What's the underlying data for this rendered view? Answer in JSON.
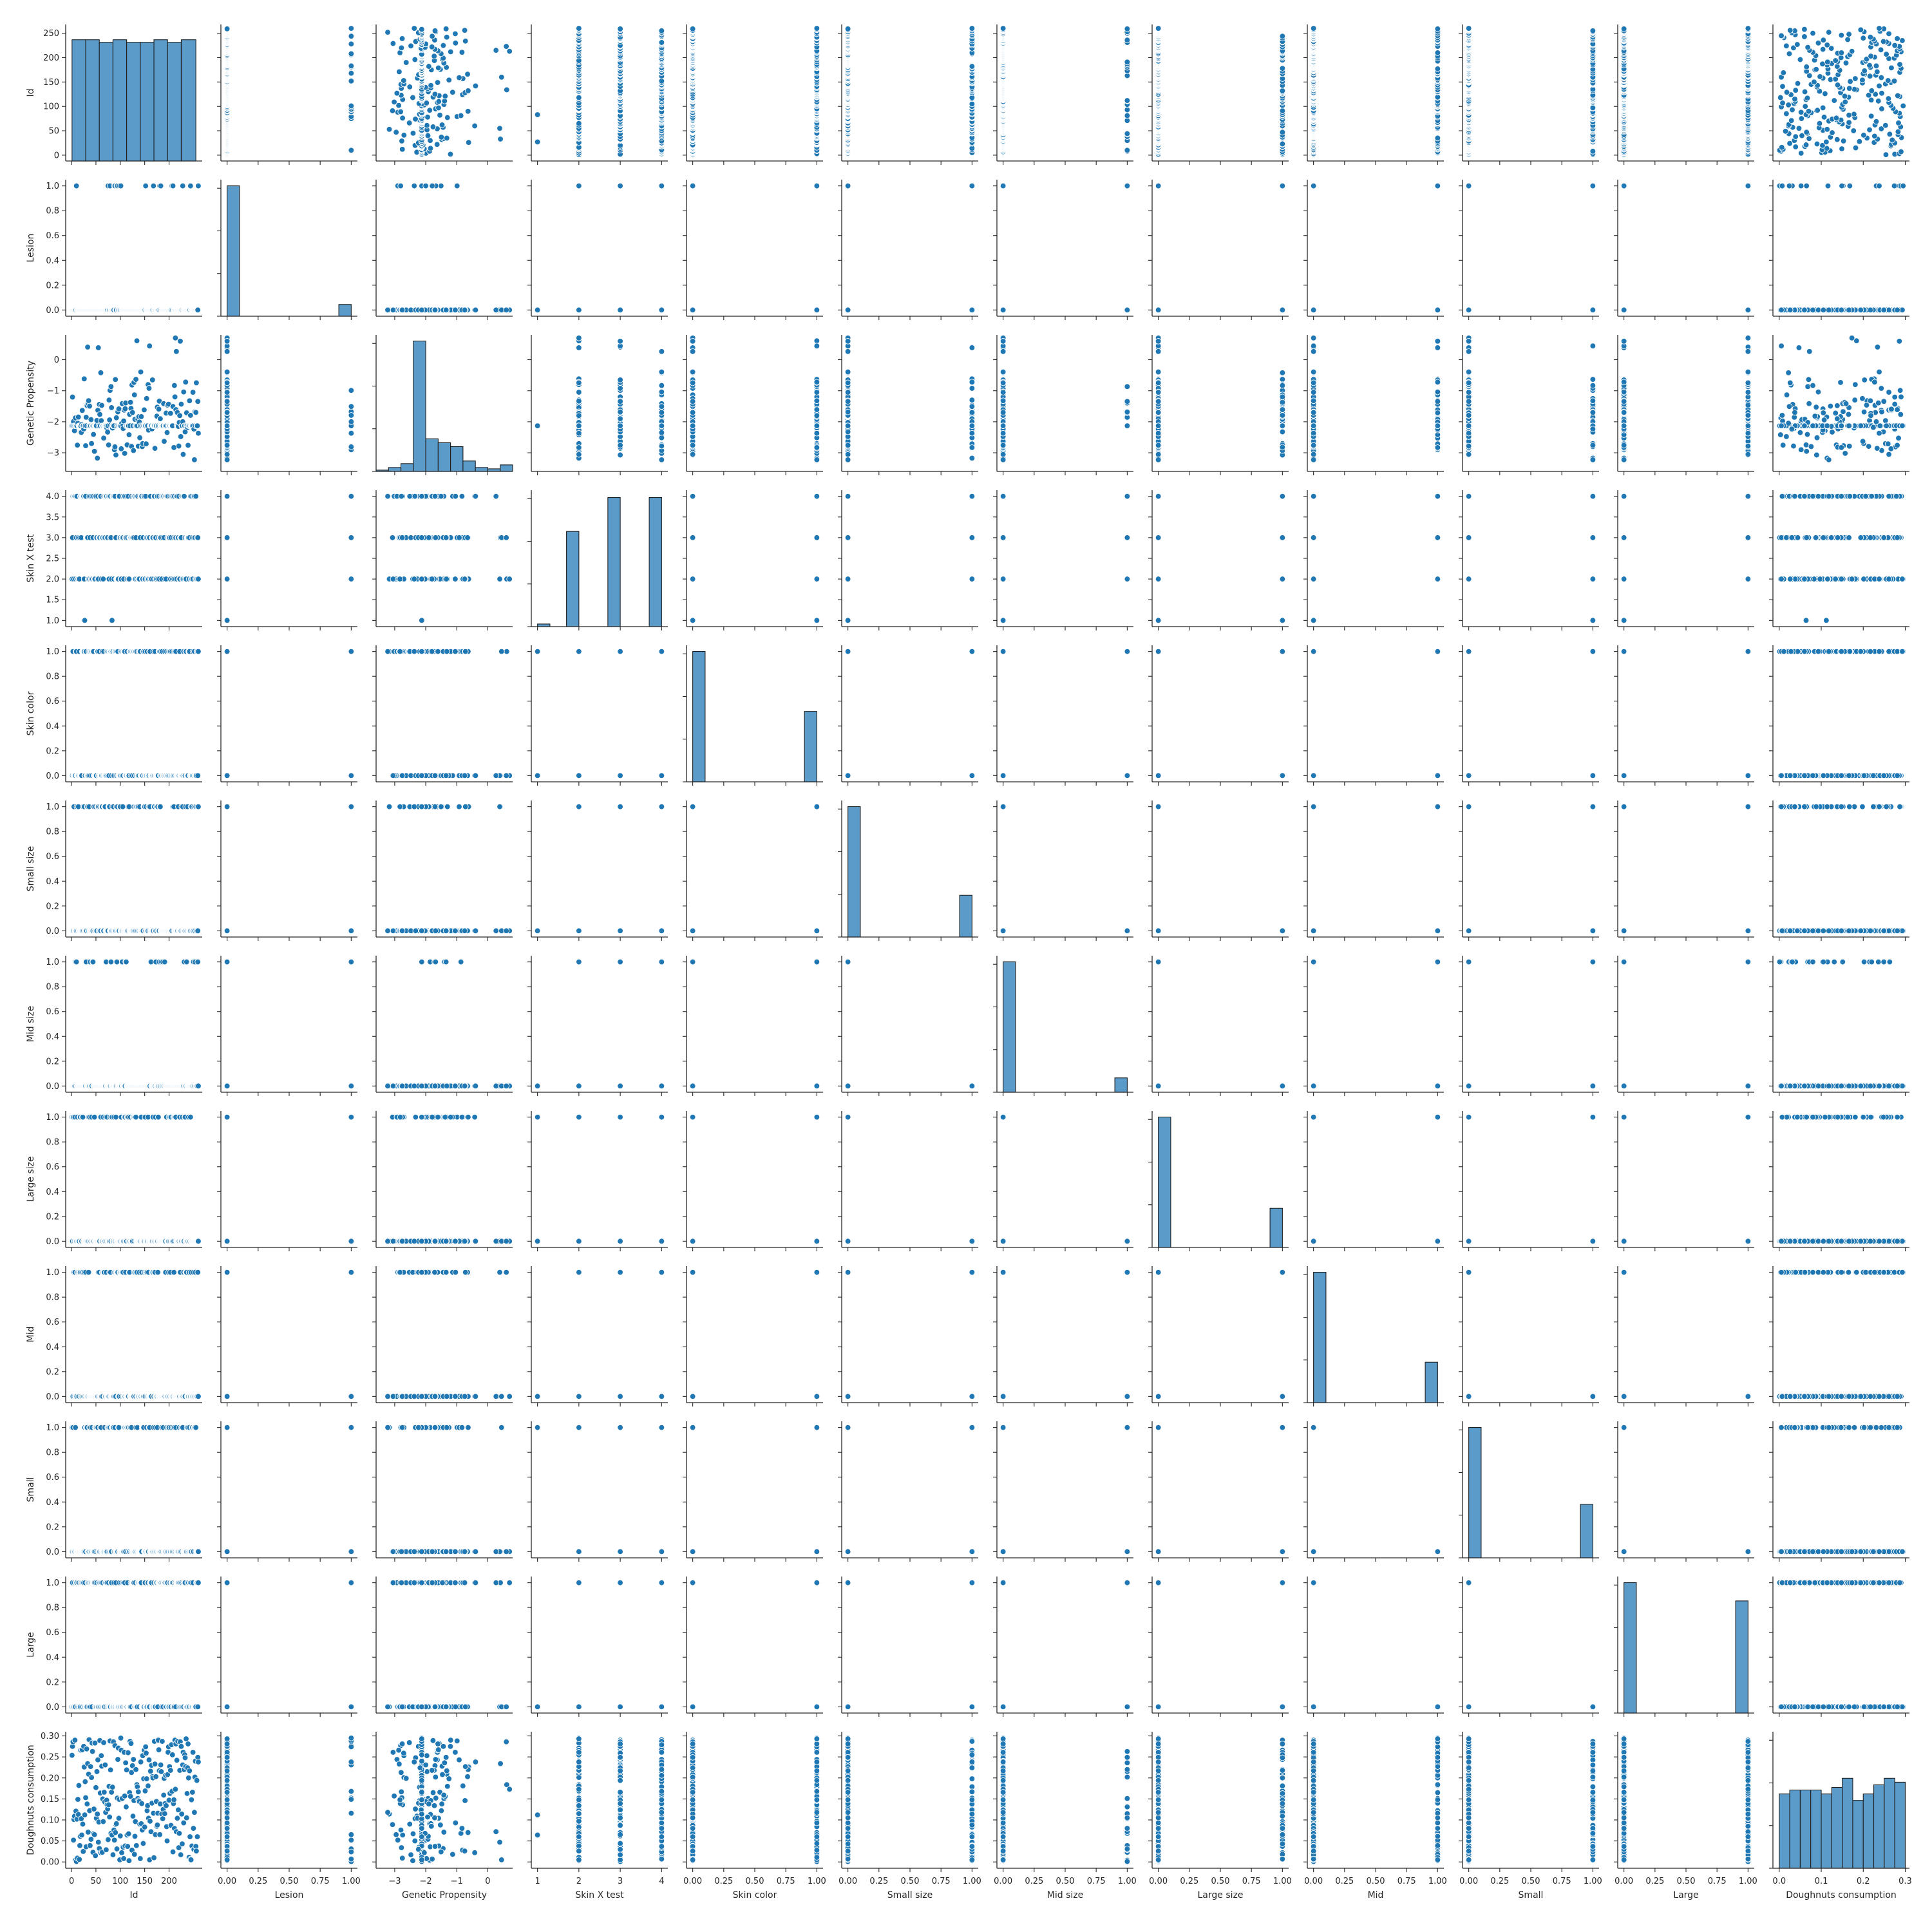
{
  "chart_data": {
    "type": "scatter",
    "subtype": "pairplot-matrix",
    "diagonal": "histogram",
    "variables": [
      "Id",
      "Lesion",
      "Genetic Propensity",
      "Skin X test",
      "Skin color",
      "Small size",
      "Mid size",
      "Large size",
      "Mid",
      "Small",
      "Large",
      "Doughnuts consumption"
    ],
    "x_ticks": [
      [
        "0",
        "50",
        "100",
        "150",
        "200"
      ],
      [
        "0.00",
        "0.25",
        "0.50",
        "0.75",
        "1.00"
      ],
      [
        "−3",
        "−2",
        "−1",
        "0"
      ],
      [
        "1",
        "2",
        "3",
        "4"
      ],
      [
        "0.00",
        "0.25",
        "0.50",
        "0.75",
        "1.00"
      ],
      [
        "0.00",
        "0.25",
        "0.50",
        "0.75",
        "1.00"
      ],
      [
        "0.00",
        "0.25",
        "0.50",
        "0.75",
        "1.00"
      ],
      [
        "0.00",
        "0.25",
        "0.50",
        "0.75",
        "1.00"
      ],
      [
        "0.00",
        "0.25",
        "0.50",
        "0.75",
        "1.00"
      ],
      [
        "0.00",
        "0.25",
        "0.50",
        "0.75",
        "1.00"
      ],
      [
        "0.00",
        "0.25",
        "0.50",
        "0.75",
        "1.00"
      ],
      [
        "0.0",
        "0.1",
        "0.2",
        "0.3"
      ]
    ],
    "y_ticks": [
      [
        "0",
        "50",
        "100",
        "150",
        "200",
        "250"
      ],
      [
        "0.0",
        "0.2",
        "0.4",
        "0.6",
        "0.8",
        "1.0"
      ],
      [
        "−3",
        "−2",
        "−1",
        "0"
      ],
      [
        "1.0",
        "1.5",
        "2.0",
        "2.5",
        "3.0",
        "3.5",
        "4.0"
      ],
      [
        "0.0",
        "0.2",
        "0.4",
        "0.6",
        "0.8",
        "1.0"
      ],
      [
        "0.0",
        "0.2",
        "0.4",
        "0.6",
        "0.8",
        "1.0"
      ],
      [
        "0.0",
        "0.2",
        "0.4",
        "0.6",
        "0.8",
        "1.0"
      ],
      [
        "0.0",
        "0.2",
        "0.4",
        "0.6",
        "0.8",
        "1.0"
      ],
      [
        "0.0",
        "0.2",
        "0.4",
        "0.6",
        "0.8",
        "1.0"
      ],
      [
        "0.0",
        "0.2",
        "0.4",
        "0.6",
        "0.8",
        "1.0"
      ],
      [
        "0.0",
        "0.2",
        "0.4",
        "0.6",
        "0.8",
        "1.0"
      ],
      [
        "0.00",
        "0.05",
        "0.10",
        "0.15",
        "0.20",
        "0.25",
        "0.30"
      ]
    ],
    "ranges": [
      [
        -12,
        268
      ],
      [
        -0.05,
        1.05
      ],
      [
        -3.6,
        0.8
      ],
      [
        0.85,
        4.15
      ],
      [
        -0.05,
        1.05
      ],
      [
        -0.05,
        1.05
      ],
      [
        -0.05,
        1.05
      ],
      [
        -0.05,
        1.05
      ],
      [
        -0.05,
        1.05
      ],
      [
        -0.05,
        1.05
      ],
      [
        -0.05,
        1.05
      ],
      [
        -0.015,
        0.31
      ]
    ],
    "tick_values": [
      [
        0,
        50,
        100,
        150,
        200,
        250
      ],
      [
        0,
        0.2,
        0.4,
        0.6,
        0.8,
        1.0
      ],
      [
        -3,
        -2,
        -1,
        0
      ],
      [
        1,
        1.5,
        2,
        2.5,
        3,
        3.5,
        4
      ],
      [
        0,
        0.2,
        0.4,
        0.6,
        0.8,
        1.0
      ],
      [
        0,
        0.2,
        0.4,
        0.6,
        0.8,
        1.0
      ],
      [
        0,
        0.2,
        0.4,
        0.6,
        0.8,
        1.0
      ],
      [
        0,
        0.2,
        0.4,
        0.6,
        0.8,
        1.0
      ],
      [
        0,
        0.2,
        0.4,
        0.6,
        0.8,
        1.0
      ],
      [
        0,
        0.2,
        0.4,
        0.6,
        0.8,
        1.0
      ],
      [
        0,
        0.2,
        0.4,
        0.6,
        0.8,
        1.0
      ],
      [
        0,
        0.05,
        0.1,
        0.15,
        0.2,
        0.25,
        0.3
      ]
    ],
    "x_tick_values": [
      [
        0,
        50,
        100,
        150,
        200
      ],
      [
        0,
        0.25,
        0.5,
        0.75,
        1.0
      ],
      [
        -3,
        -2,
        -1,
        0
      ],
      [
        1,
        2,
        3,
        4
      ],
      [
        0,
        0.25,
        0.5,
        0.75,
        1.0
      ],
      [
        0,
        0.25,
        0.5,
        0.75,
        1.0
      ],
      [
        0,
        0.25,
        0.5,
        0.75,
        1.0
      ],
      [
        0,
        0.25,
        0.5,
        0.75,
        1.0
      ],
      [
        0,
        0.25,
        0.5,
        0.75,
        1.0
      ],
      [
        0,
        0.25,
        0.5,
        0.75,
        1.0
      ],
      [
        0,
        0.25,
        0.5,
        0.75,
        1.0
      ],
      [
        0,
        0.1,
        0.2,
        0.3
      ]
    ],
    "histograms": [
      {
        "variable": "Id",
        "bins": [
          [
            1,
            29,
            0.93
          ],
          [
            29,
            57,
            0.93
          ],
          [
            57,
            85,
            0.91
          ],
          [
            85,
            113,
            0.93
          ],
          [
            113,
            141,
            0.91
          ],
          [
            141,
            169,
            0.91
          ],
          [
            169,
            197,
            0.93
          ],
          [
            197,
            225,
            0.91
          ],
          [
            225,
            255,
            0.93
          ]
        ]
      },
      {
        "variable": "Lesion",
        "bins": [
          [
            0,
            0.1,
            1.0
          ],
          [
            0.9,
            1.0,
            0.09
          ]
        ]
      },
      {
        "variable": "Genetic Propensity",
        "bins": [
          [
            -3.6,
            -3.2,
            0.01
          ],
          [
            -3.2,
            -2.8,
            0.03
          ],
          [
            -2.8,
            -2.4,
            0.06
          ],
          [
            -2.4,
            -2.0,
            1.0
          ],
          [
            -2.0,
            -1.6,
            0.25
          ],
          [
            -1.6,
            -1.2,
            0.22
          ],
          [
            -1.2,
            -0.8,
            0.19
          ],
          [
            -0.8,
            -0.4,
            0.08
          ],
          [
            -0.4,
            0.0,
            0.03
          ],
          [
            0.0,
            0.4,
            0.02
          ],
          [
            0.4,
            0.8,
            0.05
          ]
        ]
      },
      {
        "variable": "Skin X test",
        "bins": [
          [
            1.0,
            1.3,
            0.02
          ],
          [
            1.7,
            2.0,
            0.73
          ],
          [
            2.7,
            3.0,
            0.99
          ],
          [
            3.7,
            4.0,
            0.99
          ]
        ]
      },
      {
        "variable": "Skin color",
        "bins": [
          [
            0.0,
            0.1,
            1.0
          ],
          [
            0.9,
            1.0,
            0.54
          ]
        ]
      },
      {
        "variable": "Small size",
        "bins": [
          [
            0.0,
            0.1,
            1.0
          ],
          [
            0.9,
            1.0,
            0.32
          ]
        ]
      },
      {
        "variable": "Mid size",
        "bins": [
          [
            0.0,
            0.1,
            1.0
          ],
          [
            0.9,
            1.0,
            0.11
          ]
        ]
      },
      {
        "variable": "Large size",
        "bins": [
          [
            0.0,
            0.1,
            1.0
          ],
          [
            0.9,
            1.0,
            0.3
          ]
        ]
      },
      {
        "variable": "Mid",
        "bins": [
          [
            0.0,
            0.1,
            1.0
          ],
          [
            0.9,
            1.0,
            0.31
          ]
        ]
      },
      {
        "variable": "Small",
        "bins": [
          [
            0.0,
            0.1,
            1.0
          ],
          [
            0.9,
            1.0,
            0.41
          ]
        ]
      },
      {
        "variable": "Large",
        "bins": [
          [
            0.0,
            0.1,
            1.0
          ],
          [
            0.9,
            1.0,
            0.86
          ]
        ]
      },
      {
        "variable": "Doughnuts consumption",
        "bins": [
          [
            0.0,
            0.025,
            0.57
          ],
          [
            0.025,
            0.05,
            0.6
          ],
          [
            0.05,
            0.075,
            0.6
          ],
          [
            0.075,
            0.1,
            0.6
          ],
          [
            0.1,
            0.125,
            0.57
          ],
          [
            0.125,
            0.15,
            0.62
          ],
          [
            0.15,
            0.175,
            0.69
          ],
          [
            0.175,
            0.2,
            0.52
          ],
          [
            0.2,
            0.225,
            0.57
          ],
          [
            0.225,
            0.25,
            0.64
          ],
          [
            0.25,
            0.275,
            0.69
          ],
          [
            0.275,
            0.3,
            0.66
          ]
        ]
      }
    ],
    "sample_count": 260,
    "color": "#1f77b4",
    "histogram_fill": "#5b9bc9",
    "grid": false,
    "legend": "none"
  }
}
